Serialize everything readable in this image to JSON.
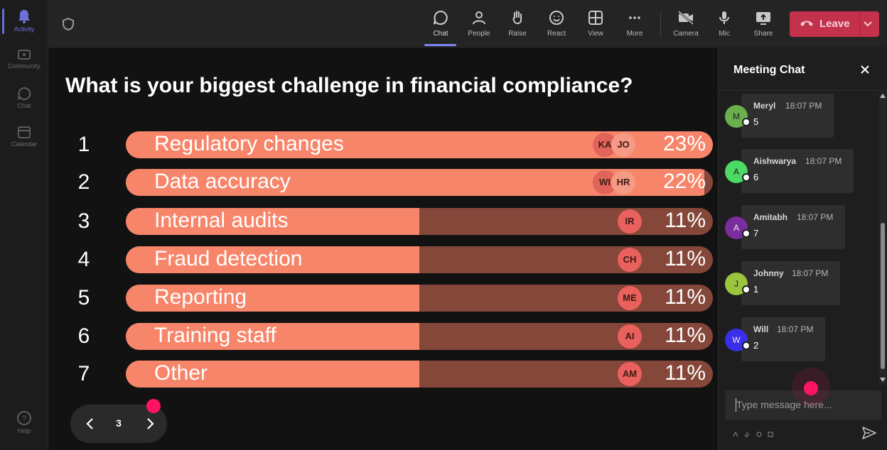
{
  "rail": {
    "items": [
      {
        "label": "Activity",
        "icon": "bell-icon"
      },
      {
        "label": "Community",
        "icon": "community-icon"
      },
      {
        "label": "Chat",
        "icon": "chat-icon"
      },
      {
        "label": "Calendar",
        "icon": "calendar-icon"
      }
    ],
    "help_label": "Help"
  },
  "toolbar": {
    "chat": "Chat",
    "people": "People",
    "raise": "Raise",
    "react": "React",
    "view": "View",
    "more": "More",
    "camera": "Camera",
    "mic": "Mic",
    "share": "Share",
    "leave": "Leave"
  },
  "poll": {
    "question": "What is your biggest challenge in financial compliance?",
    "options": [
      {
        "num": "1",
        "label": "Regulatory changes",
        "pct": "23%",
        "fill": 1.0,
        "chips": [
          "KA",
          "JO"
        ]
      },
      {
        "num": "2",
        "label": "Data accuracy",
        "pct": "22%",
        "fill": 0.985,
        "chips": [
          "WI",
          "HR"
        ]
      },
      {
        "num": "3",
        "label": "Internal audits",
        "pct": "11%",
        "fill": 0.5,
        "chips": [
          "IR"
        ]
      },
      {
        "num": "4",
        "label": "Fraud detection",
        "pct": "11%",
        "fill": 0.5,
        "chips": [
          "CH"
        ]
      },
      {
        "num": "5",
        "label": "Reporting",
        "pct": "11%",
        "fill": 0.5,
        "chips": [
          "ME"
        ]
      },
      {
        "num": "6",
        "label": "Training staff",
        "pct": "11%",
        "fill": 0.5,
        "chips": [
          "AI"
        ]
      },
      {
        "num": "7",
        "label": "Other",
        "pct": "11%",
        "fill": 0.5,
        "chips": [
          "AM"
        ]
      }
    ],
    "page": "3"
  },
  "chat": {
    "title": "Meeting Chat",
    "messages": [
      {
        "initial": "M",
        "name": "Meryl",
        "time": "18:07 PM",
        "text": "5",
        "color": "#6ab04c"
      },
      {
        "initial": "A",
        "name": "Aishwarya",
        "time": "18:07 PM",
        "text": "6",
        "color": "#4cd964"
      },
      {
        "initial": "A",
        "name": "Amitabh",
        "time": "18:07 PM",
        "text": "7",
        "color": "#7b2d9e"
      },
      {
        "initial": "J",
        "name": "Johnny",
        "time": "18:07 PM",
        "text": "1",
        "color": "#9bc53d"
      },
      {
        "initial": "W",
        "name": "Will",
        "time": "18:07 PM",
        "text": "2",
        "color": "#3a2ee8"
      }
    ],
    "compose_placeholder": "Type message here..."
  },
  "colors": {
    "bar_fill": "#f7856a",
    "bar_track": "#85473a",
    "leave": "#c4314b",
    "accent": "#7f85f5",
    "notify_dot": "#ff1463"
  }
}
